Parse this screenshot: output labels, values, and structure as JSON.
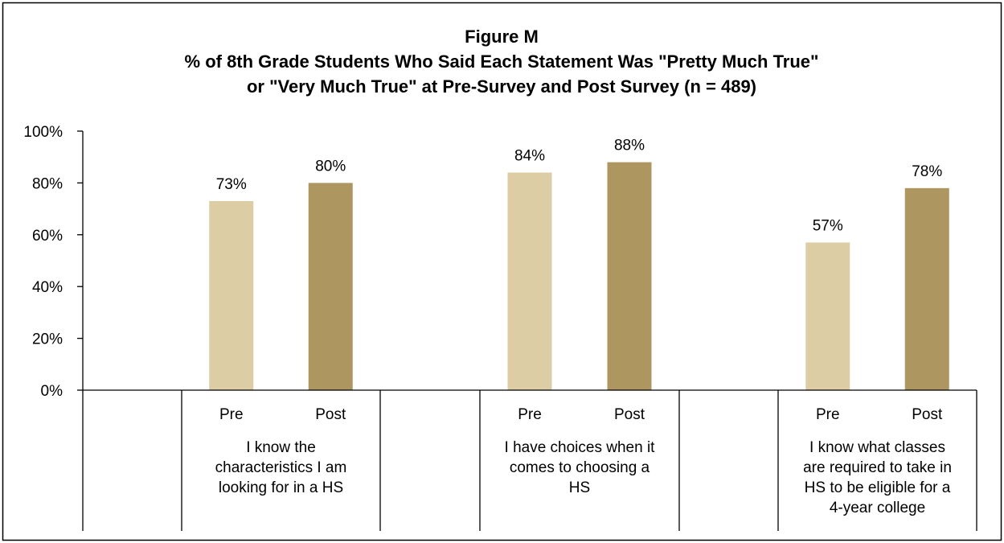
{
  "chart_data": {
    "type": "bar",
    "title_lines": [
      "Figure M",
      "% of 8th Grade Students Who Said Each Statement Was \"Pretty Much True\"",
      "or \"Very Much True\" at Pre-Survey and Post Survey (n = 489)"
    ],
    "ylim": [
      0,
      100
    ],
    "y_ticks": [
      "0%",
      "20%",
      "40%",
      "60%",
      "80%",
      "100%"
    ],
    "grid": false,
    "legend": "none",
    "categories": [
      {
        "name_lines": [
          "I know the",
          "characteristics I am",
          "looking for in a HS"
        ],
        "bars": [
          {
            "label": "Pre",
            "value": 73,
            "value_label": "73%"
          },
          {
            "label": "Post",
            "value": 80,
            "value_label": "80%"
          }
        ]
      },
      {
        "name_lines": [
          "I have choices when it",
          "comes to choosing a",
          "HS"
        ],
        "bars": [
          {
            "label": "Pre",
            "value": 84,
            "value_label": "84%"
          },
          {
            "label": "Post",
            "value": 88,
            "value_label": "88%"
          }
        ]
      },
      {
        "name_lines": [
          "I know what classes",
          "are required to take in",
          "HS to be eligible for a",
          "4-year college"
        ],
        "bars": [
          {
            "label": "Pre",
            "value": 57,
            "value_label": "57%"
          },
          {
            "label": "Post",
            "value": 78,
            "value_label": "78%"
          }
        ]
      }
    ],
    "colors": {
      "Pre": "#ddcda5",
      "Post": "#ad965f"
    }
  }
}
